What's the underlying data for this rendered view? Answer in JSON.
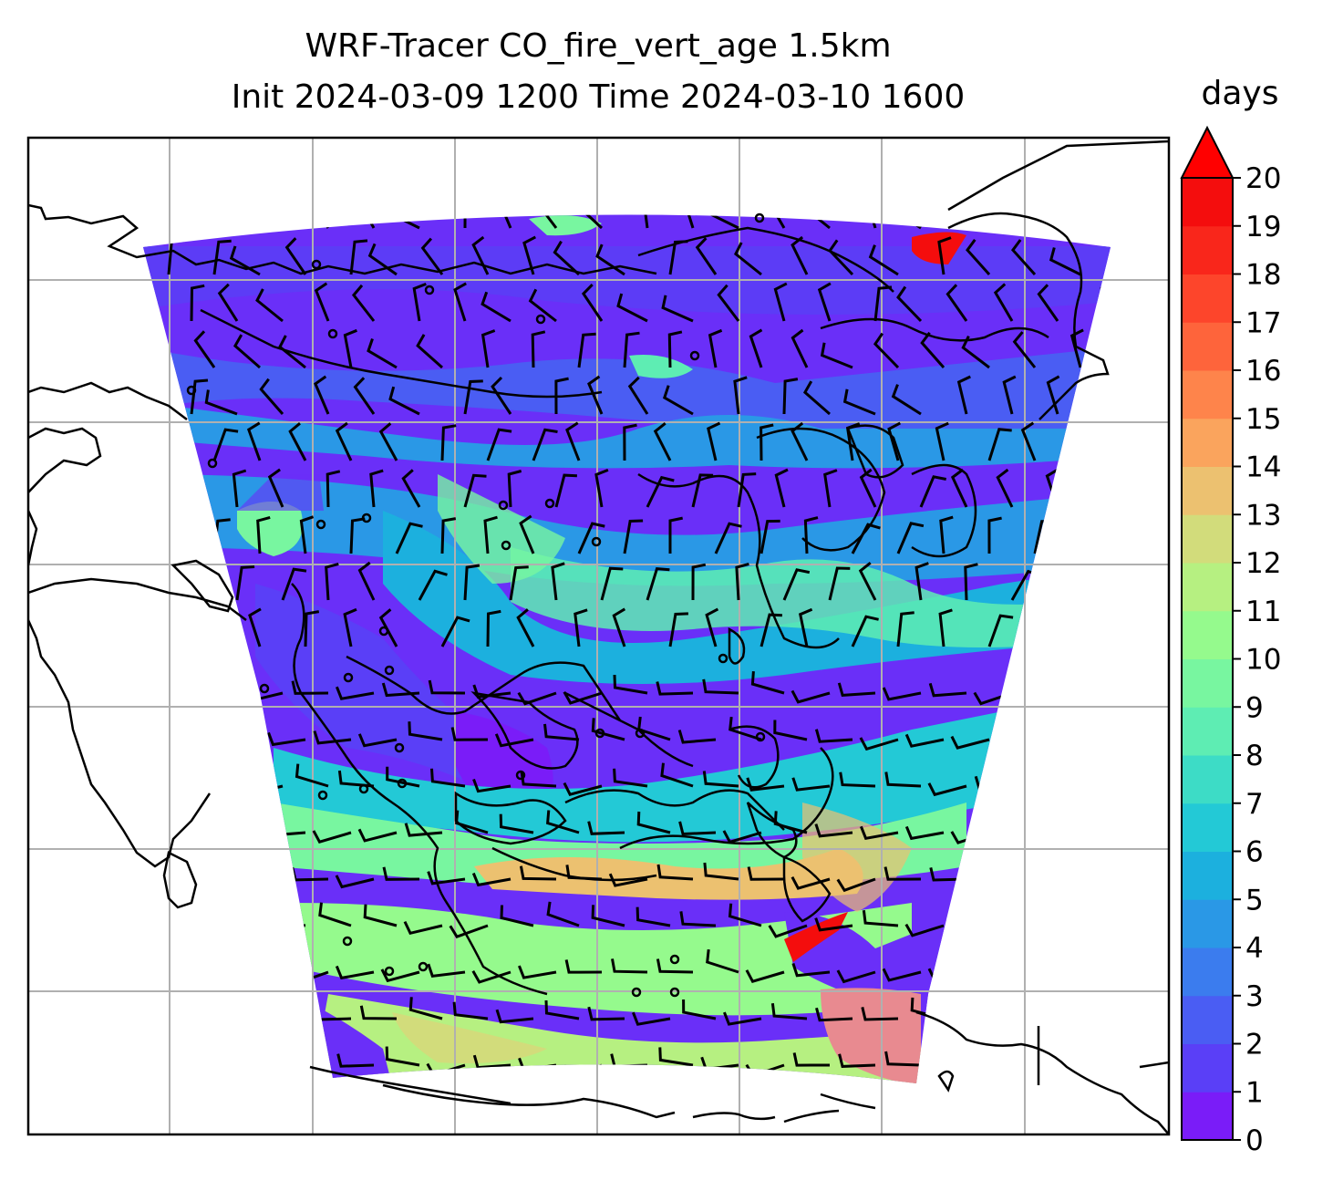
{
  "title_line1": "WRF-Tracer CO_fire_vert_age 1.5km",
  "title_line2": "Init 2024-03-09 1200 Time 2024-03-10 1600",
  "colorbar": {
    "label": "days",
    "min": 0,
    "max": 20,
    "step": 1,
    "extend": "max",
    "tick_labels": [
      "0",
      "1",
      "2",
      "3",
      "4",
      "5",
      "6",
      "7",
      "8",
      "9",
      "10",
      "11",
      "12",
      "13",
      "14",
      "15",
      "16",
      "17",
      "18",
      "19",
      "20"
    ],
    "colors": [
      "#7a1cf8",
      "#5a3ff7",
      "#4a5df3",
      "#3b7cee",
      "#2a98e6",
      "#1cb0de",
      "#23c9d6",
      "#3ddcc6",
      "#5eedb3",
      "#78f6a0",
      "#95fa8d",
      "#b6f081",
      "#d2dc7b",
      "#ecc170",
      "#faa45d",
      "#fe844b",
      "#fe643b",
      "#fd452b",
      "#f9261b",
      "#f40d0d"
    ],
    "extend_color": "#ff0000"
  },
  "map": {
    "field": "CO_fire_vert_age",
    "units": "days",
    "gridlines": true,
    "overlay": "wind barbs",
    "coastlines": true
  }
}
